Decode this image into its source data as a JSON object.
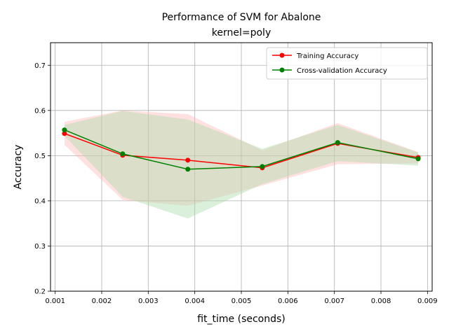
{
  "chart_data": {
    "type": "line",
    "title_line1": "Performance of SVM for Abalone",
    "title_line2": "kernel=poly",
    "xlabel": "fit_time (seconds)",
    "ylabel": "Accuracy",
    "xlim": [
      0.0009,
      0.0091
    ],
    "ylim": [
      0.2,
      0.75
    ],
    "xticks": [
      0.001,
      0.002,
      0.003,
      0.004,
      0.005,
      0.006,
      0.007,
      0.008,
      0.009
    ],
    "xtick_labels": [
      "0.001",
      "0.002",
      "0.003",
      "0.004",
      "0.005",
      "0.006",
      "0.007",
      "0.008",
      "0.009"
    ],
    "yticks": [
      0.2,
      0.3,
      0.4,
      0.5,
      0.6,
      0.7
    ],
    "ytick_labels": [
      "0.2",
      "0.3",
      "0.4",
      "0.5",
      "0.6",
      "0.7"
    ],
    "grid": true,
    "legend_position": "top-right",
    "series": [
      {
        "name": "Training Accuracy",
        "color": "#ff0000",
        "band_color": "#ffb3b3",
        "x": [
          0.0012,
          0.00245,
          0.00385,
          0.00545,
          0.00707,
          0.0088
        ],
        "values": [
          0.549,
          0.501,
          0.49,
          0.473,
          0.527,
          0.496
        ],
        "lower": [
          0.524,
          0.402,
          0.389,
          0.434,
          0.481,
          0.483
        ],
        "upper": [
          0.575,
          0.6,
          0.592,
          0.512,
          0.572,
          0.508
        ]
      },
      {
        "name": "Cross-validation Accuracy",
        "color": "#008000",
        "band_color": "#a6d9a6",
        "x": [
          0.0012,
          0.00245,
          0.00385,
          0.00545,
          0.00707,
          0.0088
        ],
        "values": [
          0.557,
          0.504,
          0.47,
          0.476,
          0.529,
          0.493
        ],
        "lower": [
          0.544,
          0.409,
          0.361,
          0.437,
          0.488,
          0.478
        ],
        "upper": [
          0.568,
          0.599,
          0.58,
          0.515,
          0.568,
          0.507
        ]
      }
    ]
  }
}
